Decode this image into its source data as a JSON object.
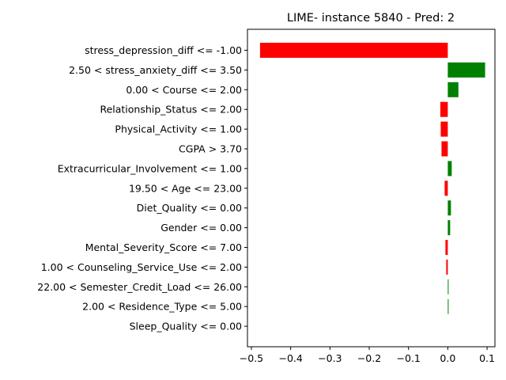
{
  "chart_data": {
    "type": "bar",
    "orientation": "horizontal",
    "title": "LIME- instance 5840 - Pred: 2",
    "xlabel": "",
    "ylabel": "",
    "xlim": [
      -0.51,
      0.12
    ],
    "xticks": [
      -0.5,
      -0.4,
      -0.3,
      -0.2,
      -0.1,
      0.0,
      0.1
    ],
    "xtick_labels": [
      "−0.5",
      "−0.4",
      "−0.3",
      "−0.2",
      "−0.1",
      "0.0",
      "0.1"
    ],
    "grid": false,
    "positive_color": "#008000",
    "negative_color": "#ff0000",
    "categories": [
      "stress_depression_diff <= -1.00",
      "2.50 < stress_anxiety_diff <= 3.50",
      "0.00 < Course <= 2.00",
      "Relationship_Status <= 2.00",
      "Physical_Activity <= 1.00",
      "CGPA > 3.70",
      "Extracurricular_Involvement <= 1.00",
      "19.50 < Age <= 23.00",
      "Diet_Quality <= 0.00",
      "Gender <= 0.00",
      "Mental_Severity_Score <= 7.00",
      "1.00 < Counseling_Service_Use <= 2.00",
      "22.00 < Semester_Credit_Load <= 26.00",
      "2.00 < Residence_Type <= 5.00",
      "Sleep_Quality <= 0.00"
    ],
    "values": [
      -0.478,
      0.095,
      0.027,
      -0.019,
      -0.018,
      -0.016,
      0.01,
      -0.008,
      0.008,
      0.006,
      -0.006,
      -0.004,
      0.002,
      0.002,
      0.0
    ]
  }
}
